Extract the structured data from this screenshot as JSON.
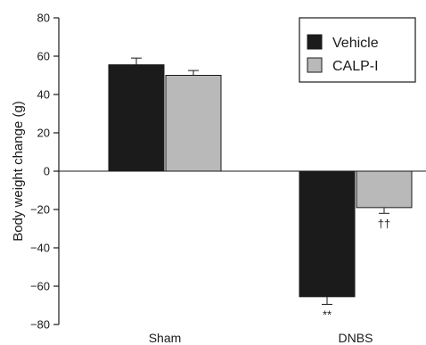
{
  "chart_data": {
    "type": "bar",
    "categories": [
      "Sham",
      "DNBS"
    ],
    "series": [
      {
        "name": "Vehicle",
        "values": [
          55.5,
          -65.5
        ],
        "errors": [
          3.5,
          4.0
        ],
        "color": "#1b1b1b"
      },
      {
        "name": "CALP-I",
        "values": [
          50.0,
          -19.0
        ],
        "errors": [
          2.5,
          3.0
        ],
        "color": "#b9b9b9"
      }
    ],
    "ylabel": "Body weight change (g)",
    "xlabel": "",
    "ylim": [
      -80,
      80
    ],
    "yticks": [
      "80",
      "60",
      "40",
      "20",
      "0",
      "−20",
      "−40",
      "−60",
      "−80"
    ],
    "annotations": [
      {
        "text": "**",
        "category": "DNBS",
        "series": "Vehicle"
      },
      {
        "text": "††",
        "category": "DNBS",
        "series": "CALP-I"
      }
    ],
    "legend": "top-right",
    "grid": false
  }
}
